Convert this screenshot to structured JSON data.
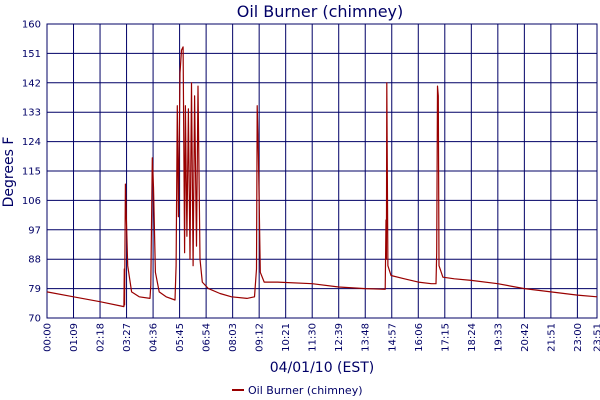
{
  "chart_data": {
    "type": "line",
    "title": "Oil Burner (chimney)",
    "xlabel": "04/01/10 (EST)",
    "ylabel": "Degrees F",
    "ylim": [
      70,
      160
    ],
    "yticks": [
      "70",
      "79",
      "88",
      "97",
      "106",
      "115",
      "124",
      "133",
      "142",
      "151",
      "160"
    ],
    "xticks": [
      "00:00",
      "01:09",
      "02:18",
      "03:27",
      "04:36",
      "05:45",
      "06:54",
      "08:03",
      "09:12",
      "10:21",
      "11:30",
      "12:39",
      "13:48",
      "14:57",
      "16:06",
      "17:15",
      "18:24",
      "19:33",
      "20:42",
      "21:51",
      "23:00",
      "23:51"
    ],
    "grid": true,
    "legend": "bottom",
    "colors": {
      "line": "#990000",
      "grid": "#000066",
      "text": "#000066"
    },
    "series": [
      {
        "name": "Oil Burner (chimney)",
        "points": [
          [
            "00:00",
            78.0
          ],
          [
            "01:09",
            76.5
          ],
          [
            "02:18",
            75.0
          ],
          [
            "03:20",
            73.5
          ],
          [
            "03:21",
            85.0
          ],
          [
            "03:22",
            74.0
          ],
          [
            "03:24",
            111.0
          ],
          [
            "03:30",
            86.0
          ],
          [
            "03:40",
            78.0
          ],
          [
            "04:00",
            76.5
          ],
          [
            "04:28",
            76.0
          ],
          [
            "04:30",
            80.0
          ],
          [
            "04:34",
            119.0
          ],
          [
            "04:37",
            110.0
          ],
          [
            "04:42",
            84.0
          ],
          [
            "04:52",
            78.0
          ],
          [
            "05:10",
            76.5
          ],
          [
            "05:33",
            75.5
          ],
          [
            "05:36",
            86.0
          ],
          [
            "05:39",
            135.0
          ],
          [
            "05:42",
            101.0
          ],
          [
            "05:46",
            145.0
          ],
          [
            "05:50",
            152.0
          ],
          [
            "05:54",
            153.0
          ],
          [
            "05:58",
            90.0
          ],
          [
            "06:00",
            135.0
          ],
          [
            "06:04",
            95.0
          ],
          [
            "06:08",
            134.0
          ],
          [
            "06:12",
            88.0
          ],
          [
            "06:16",
            142.0
          ],
          [
            "06:20",
            86.0
          ],
          [
            "06:24",
            138.0
          ],
          [
            "06:29",
            92.0
          ],
          [
            "06:33",
            141.0
          ],
          [
            "06:38",
            88.0
          ],
          [
            "06:44",
            81.0
          ],
          [
            "07:00",
            79.0
          ],
          [
            "07:30",
            77.5
          ],
          [
            "08:00",
            76.5
          ],
          [
            "08:40",
            76.0
          ],
          [
            "09:00",
            76.5
          ],
          [
            "09:05",
            85.0
          ],
          [
            "09:07",
            135.0
          ],
          [
            "09:10",
            120.0
          ],
          [
            "09:15",
            84.0
          ],
          [
            "09:25",
            81.0
          ],
          [
            "10:00",
            81.0
          ],
          [
            "11:30",
            80.5
          ],
          [
            "12:39",
            79.5
          ],
          [
            "13:48",
            79.0
          ],
          [
            "14:40",
            78.8
          ],
          [
            "14:42",
            100.0
          ],
          [
            "14:43",
            88.0
          ],
          [
            "14:44",
            142.0
          ],
          [
            "14:45",
            126.0
          ],
          [
            "14:47",
            86.0
          ],
          [
            "14:55",
            83.0
          ],
          [
            "15:30",
            82.0
          ],
          [
            "16:06",
            81.0
          ],
          [
            "16:40",
            80.5
          ],
          [
            "16:52",
            80.5
          ],
          [
            "16:54",
            90.0
          ],
          [
            "16:56",
            141.0
          ],
          [
            "16:58",
            138.0
          ],
          [
            "17:00",
            86.0
          ],
          [
            "17:10",
            82.5
          ],
          [
            "17:40",
            82.0
          ],
          [
            "18:24",
            81.5
          ],
          [
            "19:33",
            80.5
          ],
          [
            "20:42",
            79.0
          ],
          [
            "21:51",
            78.0
          ],
          [
            "23:00",
            77.0
          ],
          [
            "23:51",
            76.5
          ]
        ]
      }
    ]
  }
}
